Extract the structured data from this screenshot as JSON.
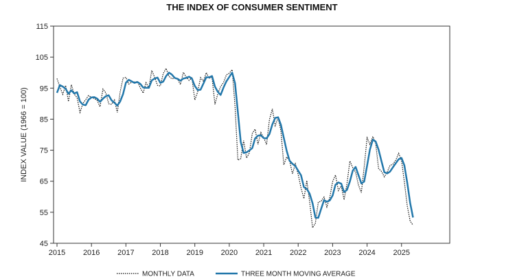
{
  "chart_data": {
    "type": "line",
    "title": "THE INDEX OF CONSUMER SENTIMENT",
    "ylabel": "INDEX VALUE (1966 = 100)",
    "xlabel": "",
    "ylim": [
      45,
      115
    ],
    "xlim": [
      2014.9,
      2026.4
    ],
    "yticks": [
      45,
      55,
      65,
      75,
      85,
      95,
      105,
      115
    ],
    "xticks": [
      2015,
      2016,
      2017,
      2018,
      2019,
      2020,
      2021,
      2022,
      2023,
      2024,
      2025
    ],
    "grid": false,
    "legend_position": "bottom",
    "colors": {
      "monthly": "#111111",
      "moving_average": "#2277aa",
      "axis": "#333333"
    },
    "series": [
      {
        "name": "MONTHLY DATA",
        "style": "dotted",
        "x": [
          2015.0,
          2015.083,
          2015.167,
          2015.25,
          2015.333,
          2015.417,
          2015.5,
          2015.583,
          2015.667,
          2015.75,
          2015.833,
          2015.917,
          2016.0,
          2016.083,
          2016.167,
          2016.25,
          2016.333,
          2016.417,
          2016.5,
          2016.583,
          2016.667,
          2016.75,
          2016.833,
          2016.917,
          2017.0,
          2017.083,
          2017.167,
          2017.25,
          2017.333,
          2017.417,
          2017.5,
          2017.583,
          2017.667,
          2017.75,
          2017.833,
          2017.917,
          2018.0,
          2018.083,
          2018.167,
          2018.25,
          2018.333,
          2018.417,
          2018.5,
          2018.583,
          2018.667,
          2018.75,
          2018.833,
          2018.917,
          2019.0,
          2019.083,
          2019.167,
          2019.25,
          2019.333,
          2019.417,
          2019.5,
          2019.583,
          2019.667,
          2019.75,
          2019.833,
          2019.917,
          2020.0,
          2020.083,
          2020.167,
          2020.25,
          2020.333,
          2020.417,
          2020.5,
          2020.583,
          2020.667,
          2020.75,
          2020.833,
          2020.917,
          2021.0,
          2021.083,
          2021.167,
          2021.25,
          2021.333,
          2021.417,
          2021.5,
          2021.583,
          2021.667,
          2021.75,
          2021.833,
          2021.917,
          2022.0,
          2022.083,
          2022.167,
          2022.25,
          2022.333,
          2022.417,
          2022.5,
          2022.583,
          2022.667,
          2022.75,
          2022.833,
          2022.917,
          2023.0,
          2023.083,
          2023.167,
          2023.25,
          2023.333,
          2023.417,
          2023.5,
          2023.583,
          2023.667,
          2023.75,
          2023.833,
          2023.917,
          2024.0,
          2024.083,
          2024.167,
          2024.25,
          2024.333,
          2024.417,
          2024.5,
          2024.583,
          2024.667,
          2024.75,
          2024.833,
          2024.917,
          2025.0,
          2025.083,
          2025.167,
          2025.25,
          2025.333
        ],
        "values": [
          98.1,
          95.4,
          93.0,
          95.9,
          90.7,
          96.1,
          93.1,
          91.9,
          87.2,
          90.0,
          91.3,
          92.6,
          92.0,
          91.7,
          91.0,
          89.0,
          94.7,
          93.5,
          90.0,
          89.8,
          91.2,
          87.2,
          93.8,
          98.2,
          98.5,
          96.3,
          96.9,
          97.0,
          97.1,
          95.1,
          93.4,
          96.8,
          95.1,
          100.7,
          98.5,
          95.9,
          95.7,
          99.7,
          101.4,
          98.8,
          98.0,
          98.2,
          97.9,
          96.2,
          100.1,
          98.6,
          97.5,
          98.3,
          91.2,
          93.8,
          98.4,
          97.2,
          100.0,
          98.2,
          98.4,
          89.8,
          93.2,
          95.5,
          96.8,
          99.3,
          99.8,
          101.0,
          89.1,
          71.8,
          72.3,
          78.1,
          72.5,
          74.1,
          80.4,
          81.8,
          76.9,
          80.7,
          79.0,
          76.8,
          84.9,
          88.3,
          82.9,
          85.5,
          81.2,
          70.3,
          72.8,
          71.7,
          67.4,
          70.6,
          67.2,
          62.8,
          59.4,
          65.2,
          58.4,
          50.0,
          51.5,
          58.2,
          58.6,
          59.9,
          56.7,
          59.7,
          64.9,
          67.0,
          62.0,
          63.5,
          59.0,
          64.2,
          71.5,
          69.4,
          67.9,
          63.8,
          61.3,
          69.7,
          79.0,
          76.9,
          79.4,
          77.2,
          69.1,
          68.2,
          66.4,
          67.9,
          70.1,
          70.5,
          71.8,
          74.0,
          71.7,
          64.7,
          57.0,
          52.2,
          50.8
        ]
      },
      {
        "name": "THREE MONTH MOVING AVERAGE",
        "style": "solid",
        "x": [
          2015.0,
          2015.083,
          2015.167,
          2015.25,
          2015.333,
          2015.417,
          2015.5,
          2015.583,
          2015.667,
          2015.75,
          2015.833,
          2015.917,
          2016.0,
          2016.083,
          2016.167,
          2016.25,
          2016.333,
          2016.417,
          2016.5,
          2016.583,
          2016.667,
          2016.75,
          2016.833,
          2016.917,
          2017.0,
          2017.083,
          2017.167,
          2017.25,
          2017.333,
          2017.417,
          2017.5,
          2017.583,
          2017.667,
          2017.75,
          2017.833,
          2017.917,
          2018.0,
          2018.083,
          2018.167,
          2018.25,
          2018.333,
          2018.417,
          2018.5,
          2018.583,
          2018.667,
          2018.75,
          2018.833,
          2018.917,
          2019.0,
          2019.083,
          2019.167,
          2019.25,
          2019.333,
          2019.417,
          2019.5,
          2019.583,
          2019.667,
          2019.75,
          2019.833,
          2019.917,
          2020.0,
          2020.083,
          2020.167,
          2020.25,
          2020.333,
          2020.417,
          2020.5,
          2020.583,
          2020.667,
          2020.75,
          2020.833,
          2020.917,
          2021.0,
          2021.083,
          2021.167,
          2021.25,
          2021.333,
          2021.417,
          2021.5,
          2021.583,
          2021.667,
          2021.75,
          2021.833,
          2021.917,
          2022.0,
          2022.083,
          2022.167,
          2022.25,
          2022.333,
          2022.417,
          2022.5,
          2022.583,
          2022.667,
          2022.75,
          2022.833,
          2022.917,
          2023.0,
          2023.083,
          2023.167,
          2023.25,
          2023.333,
          2023.417,
          2023.5,
          2023.583,
          2023.667,
          2023.75,
          2023.833,
          2023.917,
          2024.0,
          2024.083,
          2024.167,
          2024.25,
          2024.333,
          2024.417,
          2024.5,
          2024.583,
          2024.667,
          2024.75,
          2024.833,
          2024.917,
          2025.0,
          2025.083,
          2025.167,
          2025.25,
          2025.333
        ],
        "values": [
          93.5,
          96.0,
          95.5,
          94.8,
          93.2,
          94.3,
          93.3,
          93.7,
          90.7,
          89.7,
          89.5,
          91.3,
          92.0,
          92.1,
          91.6,
          90.6,
          91.6,
          92.4,
          92.7,
          91.1,
          90.3,
          89.4,
          90.7,
          93.1,
          96.8,
          97.7,
          97.2,
          96.7,
          97.0,
          96.4,
          95.2,
          95.1,
          95.1,
          97.5,
          98.1,
          98.4,
          96.7,
          97.1,
          98.9,
          100.0,
          99.4,
          98.3,
          98.0,
          97.4,
          98.1,
          98.3,
          98.7,
          98.1,
          95.7,
          94.4,
          94.5,
          96.5,
          98.5,
          98.5,
          98.9,
          95.5,
          93.8,
          92.8,
          95.2,
          97.2,
          98.6,
          100.0,
          96.6,
          87.3,
          77.7,
          74.1,
          74.3,
          74.9,
          75.7,
          78.8,
          79.7,
          79.8,
          78.9,
          78.8,
          80.2,
          83.3,
          85.4,
          85.6,
          83.2,
          79.0,
          74.8,
          71.6,
          70.6,
          69.9,
          68.4,
          66.9,
          63.1,
          62.5,
          61.0,
          57.9,
          53.3,
          53.2,
          56.1,
          58.9,
          58.4,
          58.8,
          60.4,
          63.9,
          64.6,
          64.2,
          61.5,
          62.2,
          64.9,
          68.4,
          69.6,
          67.0,
          64.3,
          64.9,
          70.0,
          75.2,
          78.4,
          77.8,
          75.2,
          71.5,
          67.9,
          67.5,
          68.1,
          69.5,
          70.8,
          72.1,
          72.5,
          70.1,
          64.5,
          58.0,
          53.3
        ]
      }
    ]
  }
}
